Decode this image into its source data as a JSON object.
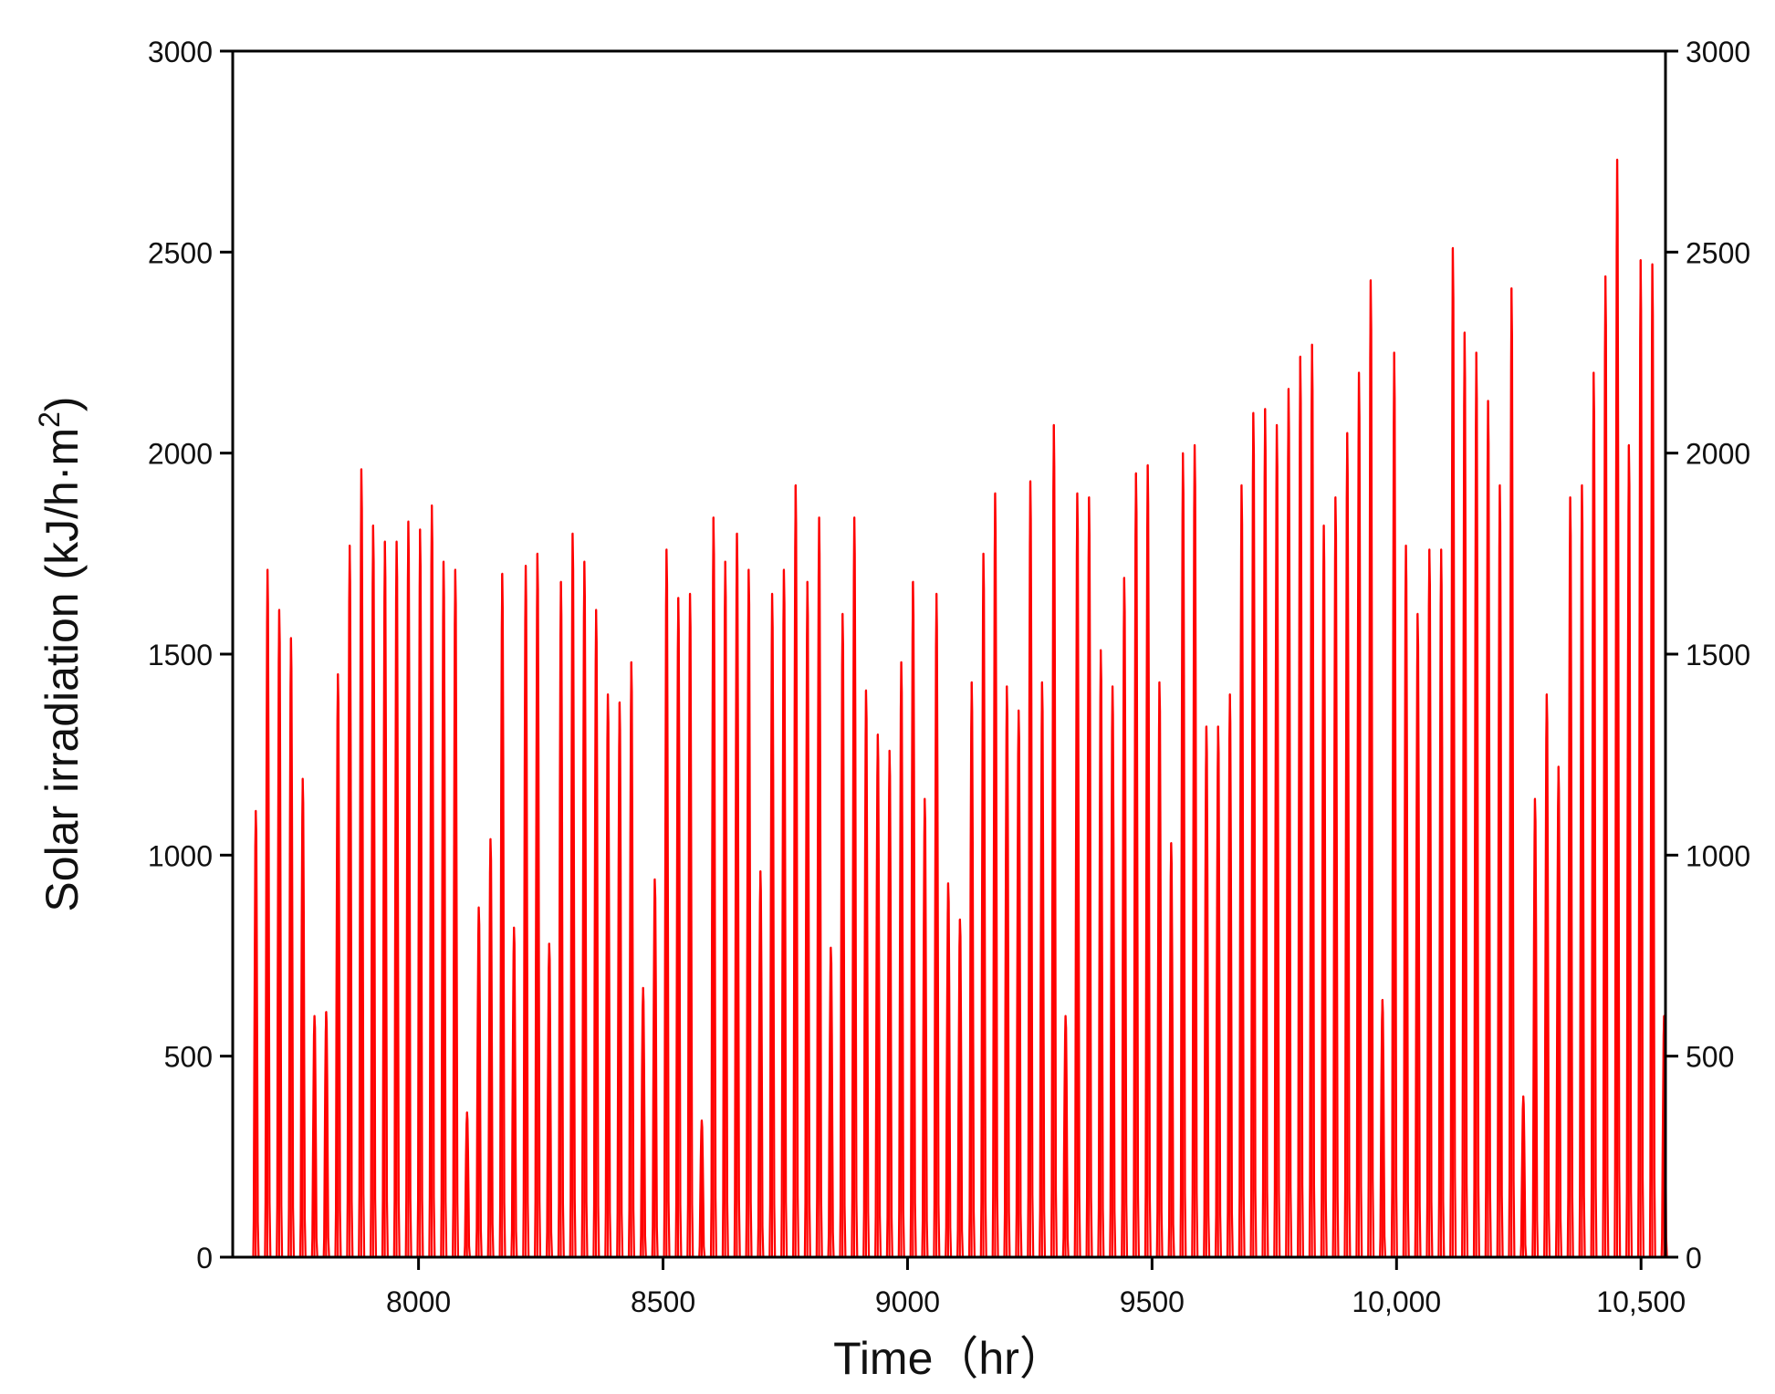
{
  "chart_data": {
    "type": "line",
    "title": "",
    "xlabel": "Time（hr）",
    "ylabel_main": "Solar irradiation (kJ/h·m",
    "ylabel_sup": "2",
    "ylabel_close": ")",
    "xlim": [
      7620,
      10550
    ],
    "ylim": [
      0,
      3000
    ],
    "x_ticks": [
      {
        "value": 8000,
        "label": "8000"
      },
      {
        "value": 8500,
        "label": "8500"
      },
      {
        "value": 9000,
        "label": "9000"
      },
      {
        "value": 9500,
        "label": "9500"
      },
      {
        "value": 10000,
        "label": "10,000"
      },
      {
        "value": 10500,
        "label": "10,500"
      }
    ],
    "y_ticks": [
      0,
      500,
      1000,
      1500,
      2000,
      2500,
      3000
    ],
    "y_ticks_right": [
      0,
      500,
      1000,
      1500,
      2000,
      2500,
      3000
    ],
    "grid": false,
    "colors": {
      "series": "#ff0000",
      "axis": "#000000"
    },
    "series": [
      {
        "x_start": 7656,
        "step": 24,
        "daily_peak": [
          1110,
          1710,
          1610,
          1540,
          1190,
          600,
          610,
          1450,
          1770,
          1960,
          1820,
          1780,
          1780,
          1830,
          1810,
          1870,
          1730,
          1710,
          360,
          870,
          1040,
          1700,
          820,
          1720,
          1750,
          780,
          1680,
          1800,
          1730,
          1610,
          1400,
          1380,
          1480,
          670,
          940,
          1760,
          1640,
          1650,
          340,
          1840,
          1730,
          1800,
          1710,
          960,
          1650,
          1710,
          1920,
          1680,
          1840,
          770,
          1600,
          1840,
          1410,
          1300,
          1260,
          1480,
          1680,
          1140,
          1650,
          930,
          840,
          1430,
          1750,
          1900,
          1420,
          1360,
          1930,
          1430,
          2070,
          600,
          1900,
          1890,
          1510,
          1420,
          1690,
          1950,
          1970,
          1430,
          1030,
          2000,
          2020,
          1320,
          1320,
          1400,
          1920,
          2100,
          2110,
          2070,
          2160,
          2240,
          2270,
          1820,
          1890,
          2050,
          2200,
          2430,
          640,
          2250,
          1770,
          1600,
          1760,
          1760,
          2510,
          2300,
          2250,
          2130,
          1920,
          2410,
          400,
          1140,
          1400,
          1220,
          1890,
          1920,
          2200,
          2440,
          2730,
          2020,
          2480,
          2470,
          600
        ]
      }
    ]
  }
}
